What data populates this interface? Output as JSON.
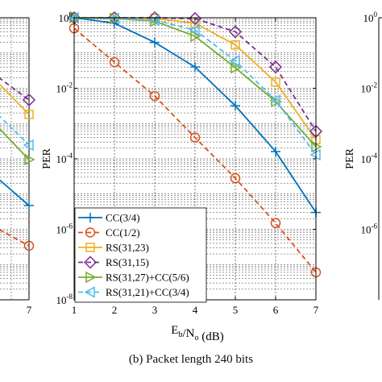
{
  "caption": "(b) Packet length 240 bits",
  "left_panel": {
    "xtick_last": "7"
  },
  "chart_data": {
    "type": "line",
    "xlabel": "E_b/N_o (dB)",
    "ylabel": "PER",
    "y_scale": "log",
    "xlim": [
      1,
      7
    ],
    "ylim": [
      1e-08,
      1
    ],
    "x_ticks": [
      "1",
      "2",
      "3",
      "4",
      "5",
      "6",
      "7"
    ],
    "y_ticks": [
      {
        "value": 1,
        "mantissa": "10",
        "exp": "0"
      },
      {
        "value": 0.01,
        "mantissa": "10",
        "exp": "-2"
      },
      {
        "value": 0.0001,
        "mantissa": "10",
        "exp": "-4"
      },
      {
        "value": 1e-06,
        "mantissa": "10",
        "exp": "-6"
      },
      {
        "value": 1e-08,
        "mantissa": "10",
        "exp": "-8"
      }
    ],
    "grid": true,
    "legend_position": "bottom-left",
    "series": [
      {
        "name": "CC(3/4)",
        "color": "#0072BD",
        "dash": "solid",
        "marker": "plus",
        "x": [
          1,
          2,
          3,
          4,
          5,
          6,
          7
        ],
        "y": [
          1.0,
          0.7,
          0.2,
          0.04,
          0.0032,
          0.00016,
          3e-06
        ]
      },
      {
        "name": "CC(1/2)",
        "color": "#D95319",
        "dash": "dashed",
        "marker": "circle",
        "x": [
          1,
          2,
          3,
          4,
          5,
          6,
          7
        ],
        "y": [
          0.5,
          0.055,
          0.006,
          0.0004,
          2.8e-05,
          1.5e-06,
          6e-08
        ]
      },
      {
        "name": "RS(31,23)",
        "color": "#EDB120",
        "dash": "solid",
        "marker": "square",
        "x": [
          1,
          2,
          3,
          4,
          5,
          6,
          7
        ],
        "y": [
          1.0,
          1.0,
          0.95,
          0.7,
          0.17,
          0.015,
          0.00035
        ]
      },
      {
        "name": "RS(31,15)",
        "color": "#7E2F8E",
        "dash": "dashed",
        "marker": "diamond",
        "x": [
          1,
          2,
          3,
          4,
          5,
          6,
          7
        ],
        "y": [
          1.0,
          1.0,
          1.0,
          0.95,
          0.4,
          0.04,
          0.0006
        ]
      },
      {
        "name": "RS(31,27)+CC(5/6)",
        "color": "#77AC30",
        "dash": "solid",
        "marker": "triangle-right",
        "x": [
          1,
          2,
          3,
          4,
          5,
          6,
          7
        ],
        "y": [
          1.0,
          0.95,
          0.8,
          0.3,
          0.038,
          0.0042,
          0.00022
        ]
      },
      {
        "name": "RS(31,21)+CC(3/4)",
        "color": "#4DBEEE",
        "dash": "dashed",
        "marker": "triangle-left",
        "x": [
          1,
          2,
          3,
          4,
          5,
          6,
          7
        ],
        "y": [
          1.0,
          0.95,
          0.85,
          0.45,
          0.06,
          0.0045,
          0.00013
        ]
      }
    ]
  },
  "left_panel_curves": [
    {
      "color": "#EDB120",
      "marker": "square"
    },
    {
      "color": "#7E2F8E",
      "marker": "diamond"
    },
    {
      "color": "#4DBEEE",
      "marker": "triangle-left"
    },
    {
      "color": "#77AC30",
      "marker": "triangle-right"
    },
    {
      "color": "#0072BD",
      "marker": "plus"
    },
    {
      "color": "#D95319",
      "marker": "circle"
    }
  ],
  "right_panel": {
    "ylabel": "PER",
    "y_ticks": [
      {
        "mantissa": "10",
        "exp": "0"
      },
      {
        "mantissa": "10",
        "exp": "-2"
      },
      {
        "mantissa": "10",
        "exp": "-4"
      },
      {
        "mantissa": "10",
        "exp": "-6"
      }
    ]
  }
}
